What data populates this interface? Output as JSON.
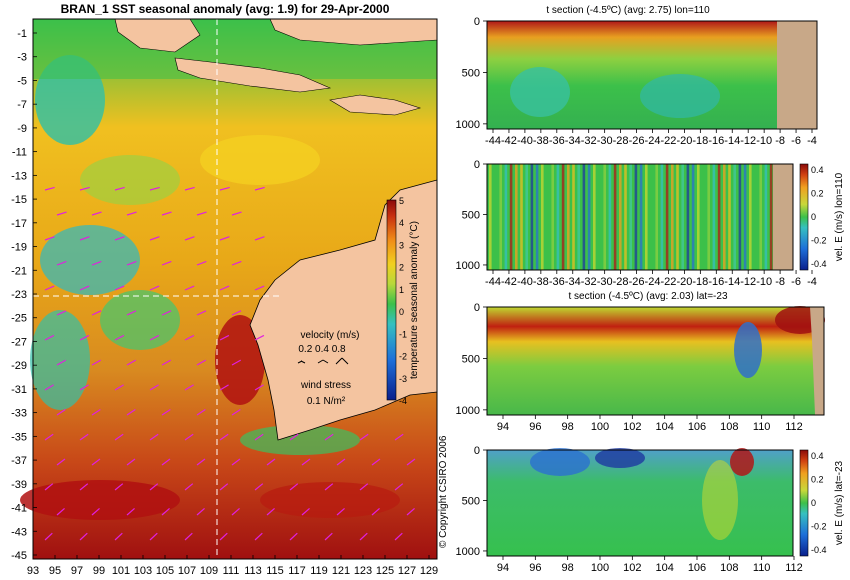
{
  "main_map": {
    "title": "BRAN_1 SST seasonal anomaly (avg: 1.9) for 29-Apr-2000",
    "lat_labels": [
      "-1",
      "-3",
      "-5",
      "-7",
      "-9",
      "-11",
      "-13",
      "-15",
      "-17",
      "-19",
      "-21",
      "-23",
      "-25",
      "-27",
      "-29",
      "-31",
      "-33",
      "-35",
      "-37",
      "-39",
      "-41",
      "-43",
      "-45"
    ],
    "lon_labels": [
      "93",
      "95",
      "97",
      "99",
      "101",
      "103",
      "105",
      "107",
      "109",
      "111",
      "113",
      "115",
      "117",
      "119",
      "121",
      "123",
      "125",
      "127",
      "129"
    ],
    "colorbar": {
      "label": "temperature seasonal anomaly (°C)",
      "ticks": [
        "5",
        "4",
        "3",
        "2",
        "1",
        "0",
        "-1",
        "-2",
        "-3",
        "-4"
      ],
      "range": [
        -4,
        5
      ]
    },
    "velocity_legend": {
      "title": "velocity (m/s)",
      "values": "0.2 0.4 0.8"
    },
    "wind_legend": {
      "title": "wind stress",
      "value": "0.1 N/m²"
    },
    "copyright": "© Copyright CSIRO 2006",
    "section_lon": 110,
    "section_lat": -23
  },
  "panels": [
    {
      "id": "panel1",
      "title": "t section (-4.5ºC) (avg: 2.75) lon=110",
      "x_ticks": [
        "-44",
        "-42",
        "-40",
        "-38",
        "-36",
        "-34",
        "-32",
        "-30",
        "-28",
        "-26",
        "-24",
        "-22",
        "-20",
        "-18",
        "-16",
        "-14",
        "-12",
        "-10",
        "-8",
        "-6",
        "-4"
      ],
      "y_ticks": [
        "0",
        "500",
        "1000"
      ],
      "colorbar_label": "",
      "colorbar_ticks": []
    },
    {
      "id": "panel2",
      "title": "",
      "x_ticks": [
        "-44",
        "-42",
        "-40",
        "-38",
        "-36",
        "-34",
        "-32",
        "-30",
        "-28",
        "-26",
        "-24",
        "-22",
        "-20",
        "-18",
        "-16",
        "-14",
        "-12",
        "-10",
        "-8",
        "-6",
        "-4"
      ],
      "y_ticks": [
        "0",
        "500",
        "1000"
      ],
      "colorbar_label": "vel. E (m/s) lon=110",
      "colorbar_ticks": [
        "0.4",
        "0.2",
        "0",
        "-0.2",
        "-0.4"
      ]
    },
    {
      "id": "panel3",
      "title": "t section (-4.5ºC) (avg: 2.03) lat=-23",
      "x_ticks": [
        "94",
        "96",
        "98",
        "100",
        "102",
        "104",
        "106",
        "108",
        "110",
        "112"
      ],
      "y_ticks": [
        "0",
        "500",
        "1000"
      ],
      "colorbar_label": "",
      "colorbar_ticks": []
    },
    {
      "id": "panel4",
      "title": "",
      "x_ticks": [
        "94",
        "96",
        "98",
        "100",
        "102",
        "104",
        "106",
        "108",
        "110",
        "112"
      ],
      "y_ticks": [
        "0",
        "500",
        "1000"
      ],
      "colorbar_label": "vel. E (m/s) lat=-23",
      "colorbar_ticks": [
        "0.4",
        "0.2",
        "0",
        "-0.2",
        "-0.4"
      ]
    }
  ],
  "chart_data": [
    {
      "type": "heatmap",
      "title": "BRAN_1 SST seasonal anomaly (avg: 1.9) for 29-Apr-2000",
      "xlabel": "",
      "ylabel": "",
      "xlim": [
        93,
        130
      ],
      "ylim": [
        -45,
        0
      ],
      "colorbar_range": [
        -4,
        5
      ],
      "colorbar_label": "temperature seasonal anomaly (°C)"
    },
    {
      "type": "heatmap",
      "title": "t section (-4.5ºC) (avg: 2.75) lon=110",
      "xlim": [
        -45,
        -3
      ],
      "ylim": [
        1050,
        0
      ]
    },
    {
      "type": "heatmap",
      "title": "",
      "xlim": [
        -45,
        -3
      ],
      "ylim": [
        1050,
        0
      ],
      "colorbar_range": [
        -0.4,
        0.4
      ],
      "colorbar_label": "vel. E (m/s) lon=110"
    },
    {
      "type": "heatmap",
      "title": "t section (-4.5ºC) (avg: 2.03) lat=-23",
      "xlim": [
        93,
        114
      ],
      "ylim": [
        1050,
        0
      ]
    },
    {
      "type": "heatmap",
      "title": "",
      "xlim": [
        93,
        114
      ],
      "ylim": [
        1050,
        0
      ],
      "colorbar_range": [
        -0.4,
        0.4
      ],
      "colorbar_label": "vel. E (m/s) lat=-23"
    }
  ]
}
